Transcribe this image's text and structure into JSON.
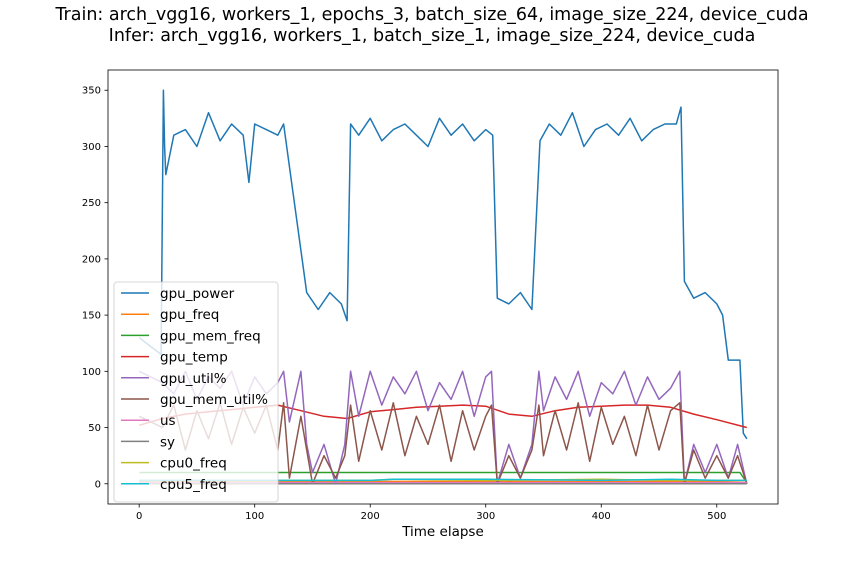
{
  "chart_data": {
    "type": "line",
    "title": "Train: arch_vgg16, workers_1, epochs_3, batch_size_64, image_size_224, device_cuda",
    "subtitle": "Infer: arch_vgg16, workers_1, batch_size_1, image_size_224, device_cuda",
    "xlabel": "Time elapse",
    "ylabel": "",
    "xlim": [
      -27,
      553
    ],
    "ylim": [
      -18,
      368
    ],
    "x_ticks": [
      0,
      100,
      200,
      300,
      400,
      500
    ],
    "y_ticks": [
      0,
      50,
      100,
      150,
      200,
      250,
      300,
      350
    ],
    "grid": false,
    "legend_position": "lower-left",
    "series": [
      {
        "name": "gpu_power",
        "color": "#1f77b4",
        "x": [
          0,
          19,
          21,
          22,
          23,
          30,
          40,
          50,
          60,
          70,
          80,
          90,
          95,
          100,
          110,
          120,
          125,
          145,
          155,
          165,
          175,
          180,
          183,
          190,
          200,
          210,
          220,
          230,
          240,
          250,
          260,
          270,
          280,
          290,
          300,
          306,
          310,
          320,
          330,
          340,
          347,
          355,
          365,
          375,
          385,
          395,
          405,
          415,
          425,
          435,
          445,
          455,
          465,
          469,
          472,
          480,
          490,
          500,
          505,
          510,
          520,
          523,
          526
        ],
        "y": [
          130,
          115,
          350,
          300,
          275,
          310,
          315,
          300,
          330,
          305,
          320,
          310,
          268,
          320,
          315,
          310,
          320,
          170,
          155,
          170,
          160,
          145,
          320,
          310,
          325,
          305,
          315,
          320,
          310,
          300,
          325,
          310,
          320,
          305,
          315,
          310,
          165,
          160,
          170,
          155,
          305,
          320,
          310,
          330,
          300,
          315,
          320,
          310,
          325,
          305,
          315,
          320,
          320,
          335,
          180,
          165,
          170,
          160,
          150,
          110,
          110,
          45,
          40
        ]
      },
      {
        "name": "gpu_freq",
        "color": "#ff7f0e",
        "x": [
          0,
          20,
          140,
          220,
          300,
          400,
          480,
          500,
          526
        ],
        "y": [
          2,
          2,
          2,
          2,
          2,
          2,
          2,
          2,
          1
        ]
      },
      {
        "name": "gpu_mem_freq",
        "color": "#2ca02c",
        "x": [
          0,
          20,
          100,
          200,
          300,
          400,
          500,
          520,
          526
        ],
        "y": [
          10,
          10,
          10,
          10,
          10,
          10,
          10,
          10,
          1
        ]
      },
      {
        "name": "gpu_temp",
        "color": "#d62728",
        "x": [
          0,
          20,
          40,
          60,
          80,
          100,
          120,
          140,
          160,
          180,
          200,
          220,
          240,
          260,
          280,
          300,
          320,
          340,
          360,
          380,
          400,
          420,
          440,
          460,
          480,
          500,
          526
        ],
        "y": [
          52,
          58,
          62,
          64,
          66,
          68,
          70,
          65,
          60,
          58,
          64,
          66,
          68,
          69,
          70,
          69,
          62,
          60,
          65,
          68,
          69,
          70,
          70,
          68,
          62,
          57,
          50
        ]
      },
      {
        "name": "gpu_util%",
        "color": "#9467bd",
        "x": [
          0,
          20,
          30,
          40,
          50,
          60,
          70,
          80,
          90,
          100,
          110,
          120,
          125,
          130,
          140,
          145,
          150,
          160,
          170,
          178,
          183,
          190,
          200,
          210,
          220,
          230,
          240,
          250,
          260,
          270,
          280,
          290,
          300,
          305,
          310,
          320,
          330,
          340,
          346,
          350,
          360,
          370,
          380,
          390,
          400,
          410,
          420,
          430,
          440,
          450,
          460,
          468,
          472,
          480,
          490,
          500,
          510,
          518,
          526
        ],
        "y": [
          100,
          90,
          80,
          100,
          75,
          95,
          85,
          100,
          70,
          95,
          80,
          90,
          100,
          55,
          100,
          35,
          10,
          35,
          0,
          35,
          100,
          60,
          100,
          70,
          95,
          80,
          100,
          65,
          90,
          75,
          100,
          60,
          95,
          100,
          0,
          35,
          5,
          35,
          100,
          65,
          95,
          75,
          100,
          60,
          90,
          80,
          100,
          70,
          95,
          75,
          85,
          100,
          0,
          35,
          10,
          35,
          5,
          35,
          0
        ]
      },
      {
        "name": "gpu_mem_util%",
        "color": "#8c564b",
        "x": [
          0,
          20,
          30,
          40,
          50,
          60,
          70,
          80,
          90,
          100,
          110,
          120,
          125,
          130,
          140,
          145,
          150,
          160,
          170,
          178,
          183,
          190,
          200,
          210,
          220,
          230,
          240,
          250,
          260,
          270,
          280,
          290,
          300,
          305,
          310,
          320,
          330,
          340,
          346,
          350,
          360,
          370,
          380,
          390,
          400,
          410,
          420,
          430,
          440,
          450,
          460,
          468,
          472,
          480,
          490,
          500,
          510,
          518,
          526
        ],
        "y": [
          60,
          50,
          70,
          30,
          65,
          40,
          72,
          35,
          68,
          45,
          70,
          30,
          72,
          5,
          60,
          30,
          0,
          25,
          5,
          25,
          70,
          20,
          65,
          30,
          72,
          25,
          60,
          35,
          70,
          20,
          65,
          30,
          60,
          70,
          0,
          25,
          5,
          30,
          70,
          25,
          65,
          30,
          72,
          20,
          68,
          35,
          60,
          25,
          70,
          30,
          65,
          72,
          0,
          30,
          5,
          25,
          5,
          25,
          0
        ]
      },
      {
        "name": "us",
        "color": "#e377c2",
        "x": [
          0,
          20,
          100,
          200,
          300,
          400,
          500,
          526
        ],
        "y": [
          1,
          1,
          1,
          1,
          1,
          1,
          1,
          1
        ]
      },
      {
        "name": "sy",
        "color": "#7f7f7f",
        "x": [
          0,
          20,
          100,
          200,
          300,
          400,
          500,
          526
        ],
        "y": [
          0,
          0,
          0,
          0,
          0,
          0,
          0,
          0
        ]
      },
      {
        "name": "cpu0_freq",
        "color": "#bcbd22",
        "x": [
          0,
          20,
          100,
          200,
          220,
          300,
          400,
          460,
          500,
          526
        ],
        "y": [
          3,
          3,
          3,
          3,
          4,
          3,
          4,
          3,
          3,
          3
        ]
      },
      {
        "name": "cpu5_freq",
        "color": "#17becf",
        "x": [
          0,
          20,
          100,
          200,
          220,
          300,
          400,
          460,
          500,
          526
        ],
        "y": [
          3,
          3,
          3,
          3,
          4,
          4,
          3,
          4,
          3,
          3
        ]
      }
    ]
  }
}
